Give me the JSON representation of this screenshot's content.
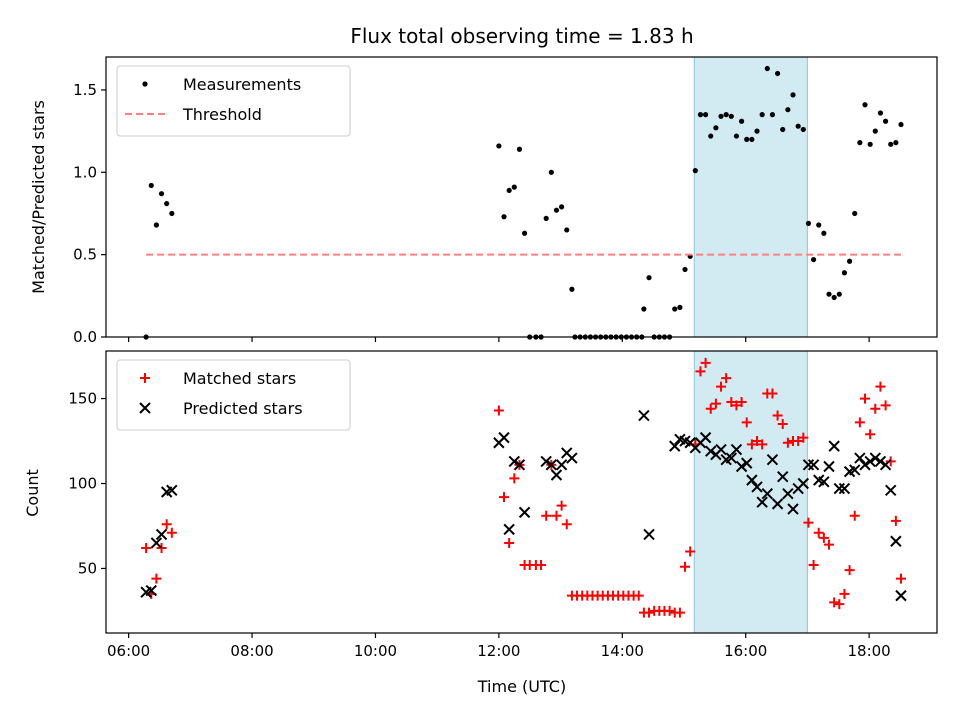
{
  "chart_data": [
    {
      "type": "scatter",
      "title": "Flux total observing time = 1.83 h",
      "ylabel": "Matched/Predicted stars",
      "xlim": [
        "05:38",
        "19:06"
      ],
      "ylim": [
        0,
        1.7
      ],
      "yticks": [
        0.0,
        0.5,
        1.0,
        1.5
      ],
      "ytick_labels": [
        "0.0",
        "0.5",
        "1.0",
        "1.5"
      ],
      "legend_position": "top-left",
      "highlight_span": [
        "15:10",
        "17:00"
      ],
      "highlight_color": "#add8e6",
      "series": [
        {
          "name": "Measurements",
          "marker": "dot",
          "color": "#000000",
          "points": [
            [
              "06:17",
              0.0
            ],
            [
              "06:22",
              0.92
            ],
            [
              "06:27",
              0.68
            ],
            [
              "06:32",
              0.87
            ],
            [
              "06:37",
              0.81
            ],
            [
              "06:42",
              0.75
            ],
            [
              "12:00",
              1.16
            ],
            [
              "12:05",
              0.73
            ],
            [
              "12:10",
              0.89
            ],
            [
              "12:15",
              0.91
            ],
            [
              "12:20",
              1.14
            ],
            [
              "12:25",
              0.63
            ],
            [
              "12:30",
              0.0
            ],
            [
              "12:36",
              0.0
            ],
            [
              "12:41",
              0.0
            ],
            [
              "12:46",
              0.72
            ],
            [
              "12:51",
              1.0
            ],
            [
              "12:56",
              0.77
            ],
            [
              "13:01",
              0.79
            ],
            [
              "13:06",
              0.65
            ],
            [
              "13:11",
              0.29
            ],
            [
              "13:14",
              0.0
            ],
            [
              "13:19",
              0.0
            ],
            [
              "13:24",
              0.0
            ],
            [
              "13:29",
              0.0
            ],
            [
              "13:34",
              0.0
            ],
            [
              "13:39",
              0.0
            ],
            [
              "13:44",
              0.0
            ],
            [
              "13:49",
              0.0
            ],
            [
              "13:54",
              0.0
            ],
            [
              "13:59",
              0.0
            ],
            [
              "14:04",
              0.0
            ],
            [
              "14:09",
              0.0
            ],
            [
              "14:14",
              0.0
            ],
            [
              "14:19",
              0.0
            ],
            [
              "14:21",
              0.17
            ],
            [
              "14:26",
              0.36
            ],
            [
              "14:31",
              0.0
            ],
            [
              "14:36",
              0.0
            ],
            [
              "14:41",
              0.0
            ],
            [
              "14:46",
              0.0
            ],
            [
              "14:51",
              0.17
            ],
            [
              "14:56",
              0.18
            ],
            [
              "15:01",
              0.41
            ],
            [
              "15:06",
              0.49
            ],
            [
              "15:11",
              1.01
            ],
            [
              "15:16",
              1.35
            ],
            [
              "15:21",
              1.35
            ],
            [
              "15:26",
              1.22
            ],
            [
              "15:31",
              1.27
            ],
            [
              "15:36",
              1.34
            ],
            [
              "15:41",
              1.35
            ],
            [
              "15:46",
              1.34
            ],
            [
              "15:51",
              1.22
            ],
            [
              "15:56",
              1.31
            ],
            [
              "16:01",
              1.2
            ],
            [
              "16:06",
              1.2
            ],
            [
              "16:11",
              1.25
            ],
            [
              "16:16",
              1.35
            ],
            [
              "16:21",
              1.63
            ],
            [
              "16:26",
              1.35
            ],
            [
              "16:31",
              1.6
            ],
            [
              "16:36",
              1.26
            ],
            [
              "16:41",
              1.38
            ],
            [
              "16:46",
              1.47
            ],
            [
              "16:51",
              1.28
            ],
            [
              "16:56",
              1.26
            ],
            [
              "17:01",
              0.69
            ],
            [
              "17:06",
              0.47
            ],
            [
              "17:11",
              0.68
            ],
            [
              "17:16",
              0.63
            ],
            [
              "17:21",
              0.26
            ],
            [
              "17:26",
              0.24
            ],
            [
              "17:31",
              0.26
            ],
            [
              "17:36",
              0.39
            ],
            [
              "17:41",
              0.46
            ],
            [
              "17:46",
              0.75
            ],
            [
              "17:51",
              1.18
            ],
            [
              "17:56",
              1.41
            ],
            [
              "18:01",
              1.17
            ],
            [
              "18:06",
              1.25
            ],
            [
              "18:11",
              1.36
            ],
            [
              "18:16",
              1.31
            ],
            [
              "18:21",
              1.17
            ],
            [
              "18:26",
              1.18
            ],
            [
              "18:31",
              1.29
            ]
          ]
        },
        {
          "name": "Threshold",
          "marker": "dashed-line",
          "color": "#ff7f7f",
          "points": [
            [
              "06:17",
              0.5
            ],
            [
              "18:31",
              0.5
            ]
          ]
        }
      ]
    },
    {
      "type": "scatter",
      "xlabel": "Time (UTC)",
      "ylabel": "Count",
      "xlim": [
        "05:38",
        "19:06"
      ],
      "ylim": [
        12,
        178
      ],
      "xticks": [
        "06:00",
        "08:00",
        "10:00",
        "12:00",
        "14:00",
        "16:00",
        "18:00"
      ],
      "yticks": [
        50,
        100,
        150
      ],
      "ytick_labels": [
        "50",
        "100",
        "150"
      ],
      "legend_position": "top-left",
      "highlight_span": [
        "15:10",
        "17:00"
      ],
      "highlight_color": "#add8e6",
      "series": [
        {
          "name": "Matched stars",
          "marker": "plus",
          "color": "#ff0000",
          "points": [
            [
              "06:17",
              62
            ],
            [
              "06:22",
              35
            ],
            [
              "06:27",
              44
            ],
            [
              "06:32",
              62
            ],
            [
              "06:37",
              76
            ],
            [
              "06:42",
              71
            ],
            [
              "12:00",
              143
            ],
            [
              "12:05",
              92
            ],
            [
              "12:10",
              65
            ],
            [
              "12:15",
              103
            ],
            [
              "12:20",
              111
            ],
            [
              "12:25",
              52
            ],
            [
              "12:30",
              52
            ],
            [
              "12:36",
              52
            ],
            [
              "12:41",
              52
            ],
            [
              "12:46",
              81
            ],
            [
              "12:51",
              111
            ],
            [
              "12:56",
              81
            ],
            [
              "13:01",
              87
            ],
            [
              "13:06",
              76
            ],
            [
              "13:11",
              34
            ],
            [
              "13:16",
              34
            ],
            [
              "13:21",
              34
            ],
            [
              "13:26",
              34
            ],
            [
              "13:31",
              34
            ],
            [
              "13:36",
              34
            ],
            [
              "13:41",
              34
            ],
            [
              "13:46",
              34
            ],
            [
              "13:51",
              34
            ],
            [
              "13:56",
              34
            ],
            [
              "14:01",
              34
            ],
            [
              "14:06",
              34
            ],
            [
              "14:11",
              34
            ],
            [
              "14:16",
              34
            ],
            [
              "14:21",
              24
            ],
            [
              "14:26",
              24
            ],
            [
              "14:31",
              25
            ],
            [
              "14:36",
              25
            ],
            [
              "14:41",
              25
            ],
            [
              "14:46",
              25
            ],
            [
              "14:51",
              24
            ],
            [
              "14:56",
              24
            ],
            [
              "15:01",
              51
            ],
            [
              "15:06",
              60
            ],
            [
              "15:11",
              123
            ],
            [
              "15:16",
              166
            ],
            [
              "15:21",
              171
            ],
            [
              "15:26",
              144
            ],
            [
              "15:31",
              147
            ],
            [
              "15:36",
              157
            ],
            [
              "15:41",
              162
            ],
            [
              "15:46",
              148
            ],
            [
              "15:51",
              146
            ],
            [
              "15:56",
              148
            ],
            [
              "16:01",
              136
            ],
            [
              "16:06",
              123
            ],
            [
              "16:11",
              125
            ],
            [
              "16:16",
              123
            ],
            [
              "16:21",
              153
            ],
            [
              "16:26",
              153
            ],
            [
              "16:31",
              140
            ],
            [
              "16:36",
              135
            ],
            [
              "16:41",
              124
            ],
            [
              "16:46",
              125
            ],
            [
              "16:51",
              125
            ],
            [
              "16:56",
              127
            ],
            [
              "17:01",
              77
            ],
            [
              "17:06",
              52
            ],
            [
              "17:11",
              71
            ],
            [
              "17:16",
              68
            ],
            [
              "17:21",
              64
            ],
            [
              "17:26",
              30
            ],
            [
              "17:31",
              29
            ],
            [
              "17:36",
              35
            ],
            [
              "17:41",
              49
            ],
            [
              "17:46",
              81
            ],
            [
              "17:51",
              136
            ],
            [
              "17:56",
              150
            ],
            [
              "18:01",
              129
            ],
            [
              "18:06",
              144
            ],
            [
              "18:11",
              157
            ],
            [
              "18:16",
              146
            ],
            [
              "18:21",
              113
            ],
            [
              "18:26",
              78
            ],
            [
              "18:31",
              44
            ]
          ]
        },
        {
          "name": "Predicted stars",
          "marker": "x",
          "color": "#000000",
          "points": [
            [
              "06:17",
              36
            ],
            [
              "06:22",
              37
            ],
            [
              "06:27",
              65
            ],
            [
              "06:32",
              70
            ],
            [
              "06:37",
              95
            ],
            [
              "06:42",
              96
            ],
            [
              "12:00",
              124
            ],
            [
              "12:05",
              127
            ],
            [
              "12:10",
              73
            ],
            [
              "12:15",
              113
            ],
            [
              "12:20",
              111
            ],
            [
              "12:25",
              83
            ],
            [
              "12:46",
              113
            ],
            [
              "12:51",
              111
            ],
            [
              "12:56",
              105
            ],
            [
              "13:01",
              111
            ],
            [
              "13:06",
              118
            ],
            [
              "13:11",
              115
            ],
            [
              "14:21",
              140
            ],
            [
              "14:26",
              70
            ],
            [
              "14:51",
              122
            ],
            [
              "14:56",
              126
            ],
            [
              "15:01",
              125
            ],
            [
              "15:06",
              124
            ],
            [
              "15:11",
              121
            ],
            [
              "15:16",
              124
            ],
            [
              "15:21",
              127
            ],
            [
              "15:26",
              119
            ],
            [
              "15:31",
              117
            ],
            [
              "15:36",
              120
            ],
            [
              "15:41",
              114
            ],
            [
              "15:46",
              115
            ],
            [
              "15:51",
              120
            ],
            [
              "15:56",
              110
            ],
            [
              "16:01",
              112
            ],
            [
              "16:06",
              102
            ],
            [
              "16:11",
              98
            ],
            [
              "16:16",
              89
            ],
            [
              "16:21",
              94
            ],
            [
              "16:26",
              114
            ],
            [
              "16:31",
              88
            ],
            [
              "16:36",
              104
            ],
            [
              "16:41",
              94
            ],
            [
              "16:46",
              85
            ],
            [
              "16:51",
              97
            ],
            [
              "16:56",
              100
            ],
            [
              "17:01",
              111
            ],
            [
              "17:06",
              111
            ],
            [
              "17:11",
              102
            ],
            [
              "17:16",
              101
            ],
            [
              "17:21",
              110
            ],
            [
              "17:26",
              122
            ],
            [
              "17:31",
              97
            ],
            [
              "17:36",
              97
            ],
            [
              "17:41",
              107
            ],
            [
              "17:46",
              108
            ],
            [
              "17:51",
              115
            ],
            [
              "17:56",
              111
            ],
            [
              "18:01",
              113
            ],
            [
              "18:06",
              115
            ],
            [
              "18:11",
              113
            ],
            [
              "18:16",
              111
            ],
            [
              "18:21",
              96
            ],
            [
              "18:26",
              66
            ],
            [
              "18:31",
              34
            ]
          ]
        }
      ]
    }
  ]
}
